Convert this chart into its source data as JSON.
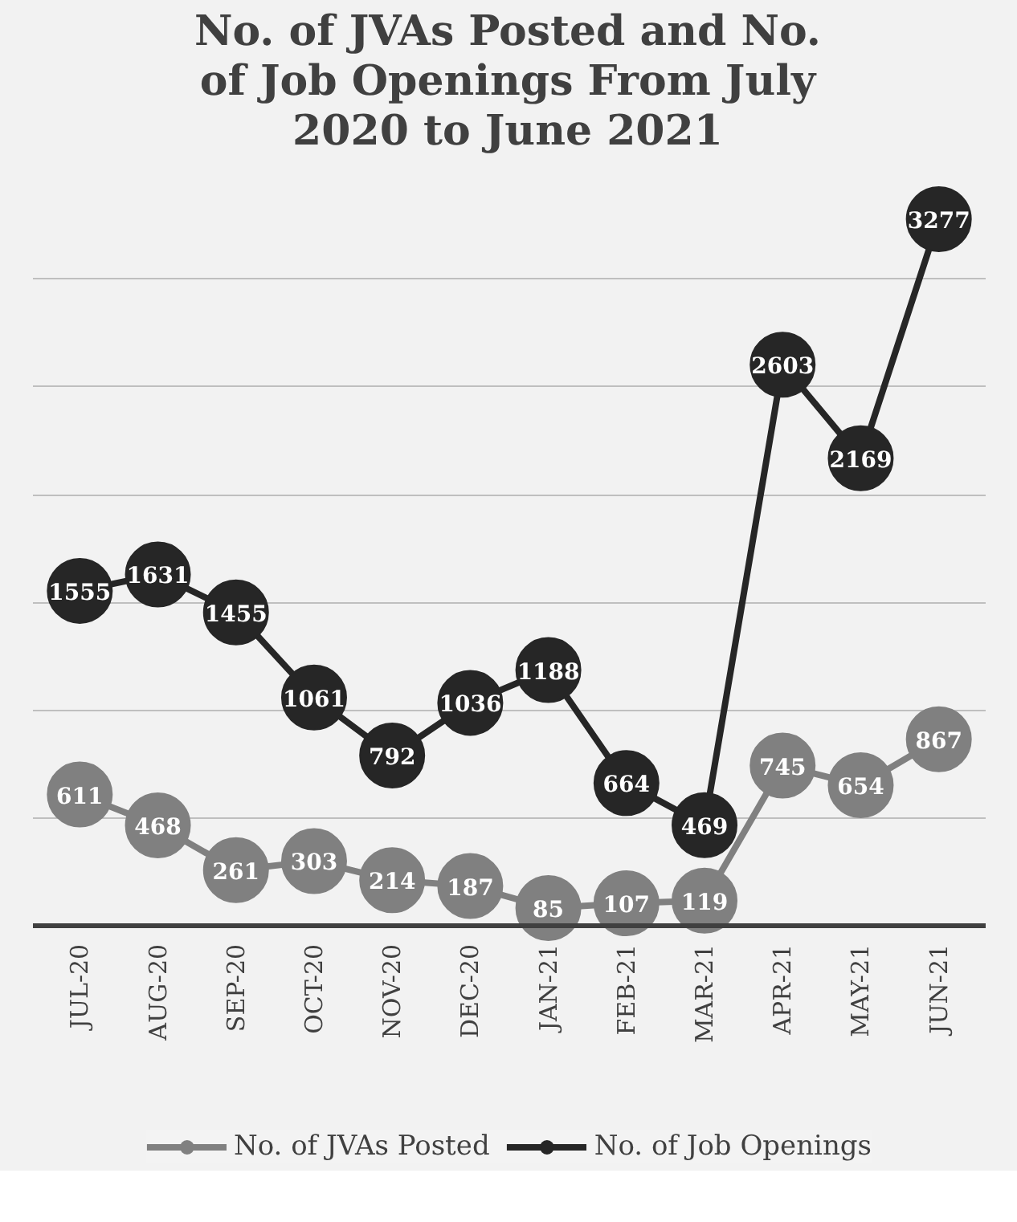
{
  "chart_data": {
    "type": "line",
    "title": "No. of JVAs Posted and No. of Job Openings From July 2020 to June 2021",
    "categories": [
      "JUL-20",
      "AUG-20",
      "SEP-20",
      "OCT-20",
      "NOV-20",
      "DEC-20",
      "JAN-21",
      "FEB-21",
      "MAR-21",
      "APR-21",
      "MAY-21",
      "JUN-21"
    ],
    "series": [
      {
        "name": "No. of JVAs Posted",
        "color": "#808080",
        "values": [
          611,
          468,
          261,
          303,
          214,
          187,
          85,
          107,
          119,
          745,
          654,
          867
        ]
      },
      {
        "name": "No. of Job Openings",
        "color": "#262626",
        "values": [
          1555,
          1631,
          1455,
          1061,
          792,
          1036,
          1188,
          664,
          469,
          2603,
          2169,
          3277
        ]
      }
    ],
    "tick_labels": "x",
    "grid": "y",
    "legend": "bottom",
    "marker": "circle",
    "line_style": "solid",
    "data_labels": true
  }
}
